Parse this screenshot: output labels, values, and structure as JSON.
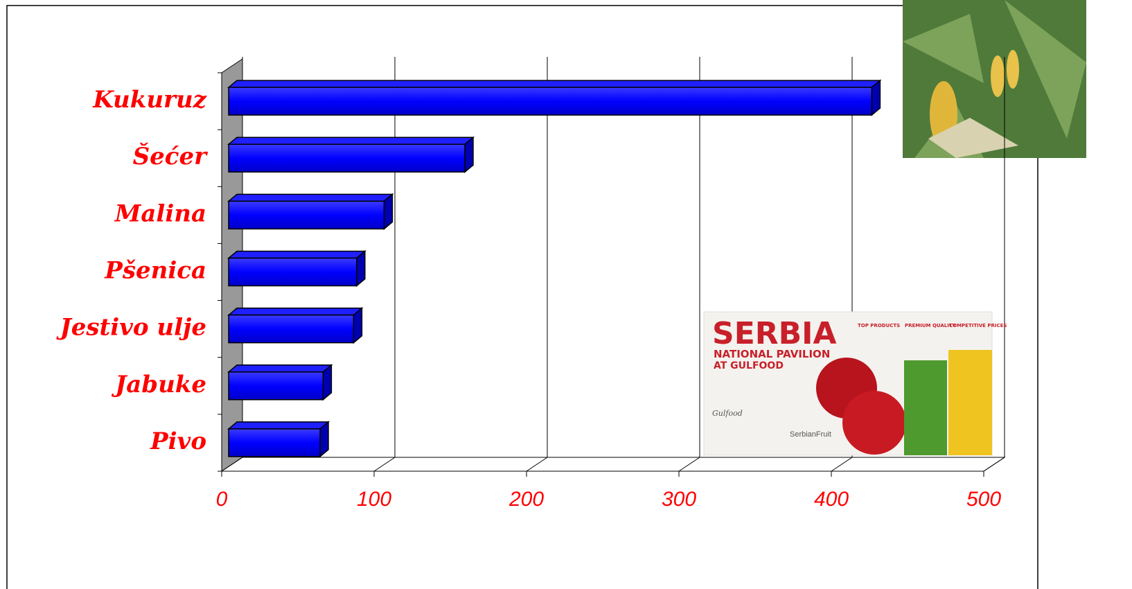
{
  "chart_data": {
    "type": "bar3d",
    "categories": [
      "Kukuruz",
      "Šećer",
      "Malina",
      "Pšenica",
      "Jestivo ulje",
      "Jabuke",
      "Pivo"
    ],
    "values": [
      422,
      155,
      102,
      84,
      82,
      62,
      60
    ],
    "color": "#0000ff",
    "xlim": [
      0,
      500
    ],
    "xticks": [
      0,
      100,
      200,
      300,
      400,
      500
    ],
    "grid": true
  },
  "ad": {
    "title": "SERBIA",
    "subtitle": "NATIONAL PAVILION",
    "subtitle2": "AT GULFOOD",
    "badges": [
      "TOP PRODUCTS",
      "PREMIUM QUALITY",
      "COMPETITIVE PRICES"
    ],
    "logo": "Gulfood",
    "brand": "SerbianFruit"
  }
}
